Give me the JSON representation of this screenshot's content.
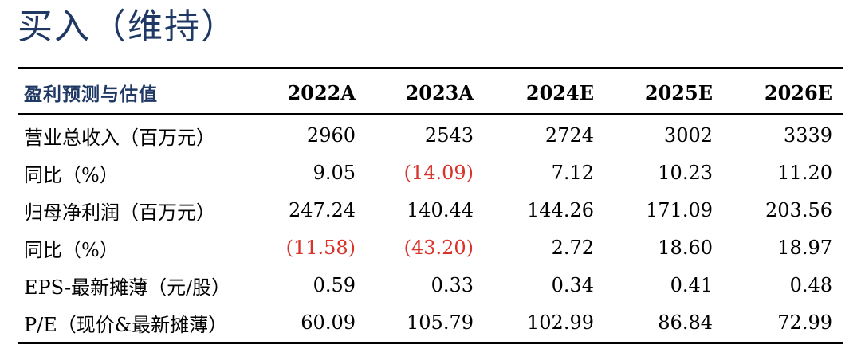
{
  "rating": "买入（维持）",
  "table": {
    "header": {
      "label": "盈利预测与估值",
      "years": [
        "2022A",
        "2023A",
        "2024E",
        "2025E",
        "2026E"
      ]
    },
    "rows": [
      {
        "label": "营业总收入（百万元）",
        "values": [
          "2960",
          "2543",
          "2724",
          "3002",
          "3339"
        ]
      },
      {
        "label": "同比（%）",
        "values": [
          "9.05",
          "(14.09)",
          "7.12",
          "10.23",
          "11.20"
        ]
      },
      {
        "label": "归母净利润（百万元）",
        "values": [
          "247.24",
          "140.44",
          "144.26",
          "171.09",
          "203.56"
        ]
      },
      {
        "label": "同比（%）",
        "values": [
          "(11.58)",
          "(43.20)",
          "2.72",
          "18.60",
          "18.97"
        ]
      },
      {
        "label": "EPS-最新摊薄（元/股）",
        "values": [
          "0.59",
          "0.33",
          "0.34",
          "0.41",
          "0.48"
        ]
      },
      {
        "label": "P/E（现价&最新摊薄）",
        "values": [
          "60.09",
          "105.79",
          "102.99",
          "86.84",
          "72.99"
        ]
      }
    ]
  },
  "colors": {
    "heading": "#1f3864",
    "negative": "#d9342b",
    "text": "#000000"
  }
}
